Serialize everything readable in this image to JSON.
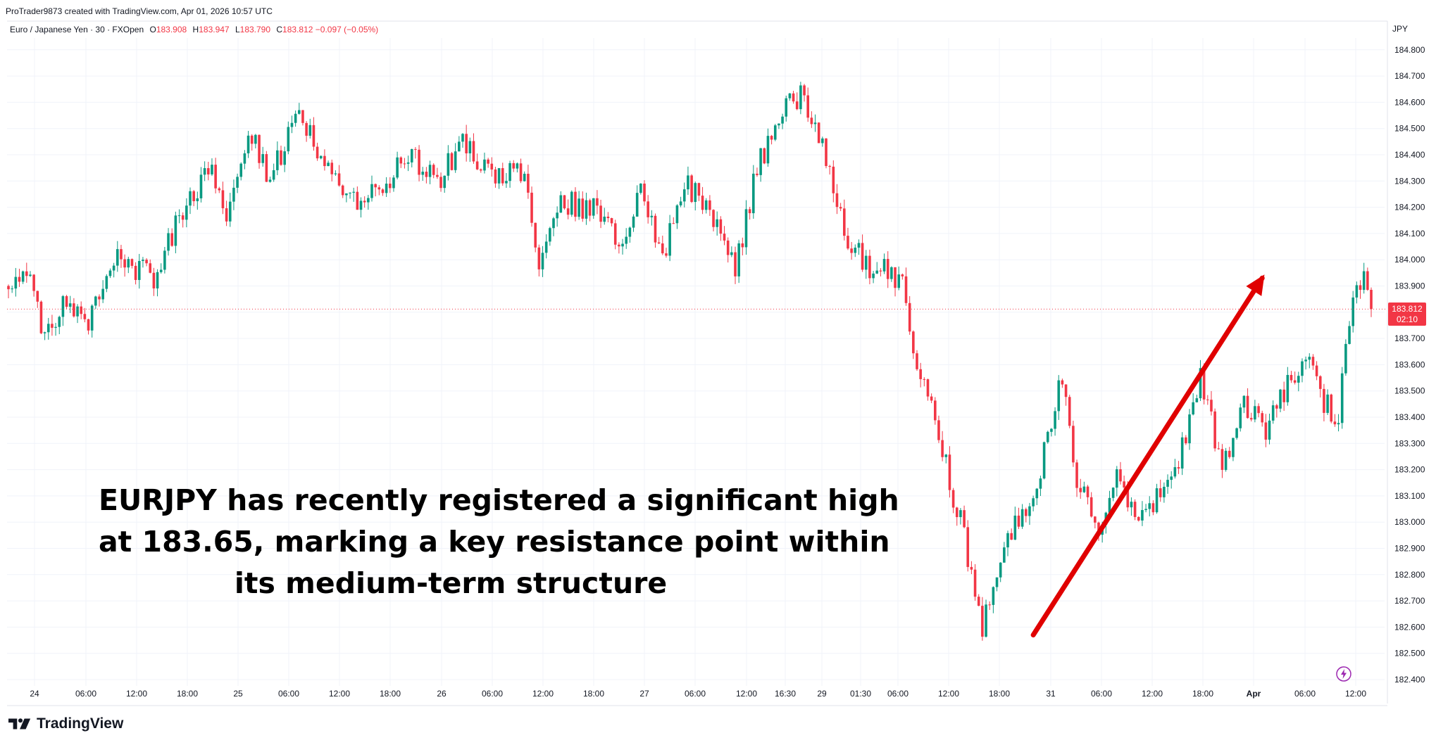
{
  "header": {
    "attribution": "ProTrader9873 created with TradingView.com, Apr 01, 2026 10:57 UTC",
    "symbol": "Euro / Japanese Yen · 30 · FXOpen",
    "ohlc": {
      "o_label": "O",
      "o_value": "183.908",
      "h_label": "H",
      "h_value": "183.947",
      "l_label": "L",
      "l_value": "183.790",
      "c_label": "C",
      "c_value": "183.812",
      "change": "−0.097 (−0.05%)"
    }
  },
  "price_axis": {
    "currency": "JPY",
    "last_price_label": "183.812",
    "countdown": "02:10"
  },
  "annotation": {
    "line1": "EURJPY has recently registered a significant high",
    "line2": "at 183.65, marking a key resistance point within",
    "line3": "its medium-term structure"
  },
  "footer": {
    "brand": "TradingView"
  },
  "icons": [
    "tradingview-logo-icon",
    "lightning-bolt-icon",
    "trend-arrow-icon"
  ],
  "colors": {
    "up": "#089981",
    "down": "#f23645",
    "arrow": "#e00000",
    "grid": "#f0f3fa",
    "text": "#131722"
  },
  "chart_data": {
    "type": "candlestick",
    "symbol": "EURJPY",
    "timeframe": "30",
    "ylim": [
      182.4,
      184.86
    ],
    "y_ticks": [
      182.4,
      182.5,
      182.6,
      182.7,
      182.8,
      182.9,
      183.0,
      183.1,
      183.2,
      183.3,
      183.4,
      183.5,
      183.6,
      183.7,
      183.8,
      183.9,
      184.0,
      184.1,
      184.2,
      184.3,
      184.4,
      184.5,
      184.6,
      184.7,
      184.8
    ],
    "y_tick_labels": [
      "182.400",
      "182.500",
      "182.600",
      "182.700",
      "182.800",
      "182.900",
      "183.000",
      "183.100",
      "183.200",
      "183.300",
      "183.400",
      "183.500",
      "183.600",
      "183.700",
      "183.800",
      "183.900",
      "184.000",
      "184.100",
      "184.200",
      "184.300",
      "184.400",
      "184.500",
      "184.600",
      "184.700",
      "184.800"
    ],
    "x_tick_labels": [
      "24",
      "06:00",
      "12:00",
      "18:00",
      "25",
      "06:00",
      "12:00",
      "18:00",
      "26",
      "06:00",
      "12:00",
      "18:00",
      "27",
      "06:00",
      "12:00",
      "16:30",
      "29",
      "01:30",
      "06:00",
      "12:00",
      "18:00",
      "31",
      "06:00",
      "12:00",
      "18:00",
      "Apr",
      "06:00",
      "12:00"
    ],
    "x_tick_bold": [
      false,
      false,
      false,
      false,
      false,
      false,
      false,
      false,
      false,
      false,
      false,
      false,
      false,
      false,
      false,
      false,
      false,
      false,
      false,
      false,
      false,
      false,
      false,
      false,
      false,
      true,
      false,
      false
    ],
    "last_price": 183.812,
    "grid": true,
    "price_path": [
      {
        "bar": 0,
        "price": 183.9
      },
      {
        "bar": 6,
        "price": 183.96
      },
      {
        "bar": 10,
        "price": 183.68
      },
      {
        "bar": 16,
        "price": 183.84
      },
      {
        "bar": 22,
        "price": 183.78
      },
      {
        "bar": 30,
        "price": 184.0
      },
      {
        "bar": 40,
        "price": 183.94
      },
      {
        "bar": 50,
        "price": 184.25
      },
      {
        "bar": 56,
        "price": 184.35
      },
      {
        "bar": 60,
        "price": 184.15
      },
      {
        "bar": 66,
        "price": 184.5
      },
      {
        "bar": 72,
        "price": 184.3
      },
      {
        "bar": 80,
        "price": 184.58
      },
      {
        "bar": 88,
        "price": 184.35
      },
      {
        "bar": 96,
        "price": 184.2
      },
      {
        "bar": 104,
        "price": 184.28
      },
      {
        "bar": 110,
        "price": 184.4
      },
      {
        "bar": 118,
        "price": 184.3
      },
      {
        "bar": 126,
        "price": 184.45
      },
      {
        "bar": 134,
        "price": 184.3
      },
      {
        "bar": 142,
        "price": 184.35
      },
      {
        "bar": 146,
        "price": 183.98
      },
      {
        "bar": 152,
        "price": 184.22
      },
      {
        "bar": 160,
        "price": 184.2
      },
      {
        "bar": 168,
        "price": 184.08
      },
      {
        "bar": 174,
        "price": 184.25
      },
      {
        "bar": 180,
        "price": 184.0
      },
      {
        "bar": 186,
        "price": 184.3
      },
      {
        "bar": 192,
        "price": 184.2
      },
      {
        "bar": 200,
        "price": 183.97
      },
      {
        "bar": 206,
        "price": 184.35
      },
      {
        "bar": 212,
        "price": 184.55
      },
      {
        "bar": 218,
        "price": 184.62
      },
      {
        "bar": 224,
        "price": 184.45
      },
      {
        "bar": 230,
        "price": 184.1
      },
      {
        "bar": 236,
        "price": 183.98
      },
      {
        "bar": 242,
        "price": 183.95
      },
      {
        "bar": 246,
        "price": 183.92
      },
      {
        "bar": 248,
        "price": 183.7
      },
      {
        "bar": 254,
        "price": 183.42
      },
      {
        "bar": 262,
        "price": 183.0
      },
      {
        "bar": 268,
        "price": 182.6
      },
      {
        "bar": 274,
        "price": 182.9
      },
      {
        "bar": 282,
        "price": 183.1
      },
      {
        "bar": 290,
        "price": 183.55
      },
      {
        "bar": 294,
        "price": 183.18
      },
      {
        "bar": 300,
        "price": 183.0
      },
      {
        "bar": 306,
        "price": 183.2
      },
      {
        "bar": 310,
        "price": 182.98
      },
      {
        "bar": 316,
        "price": 183.08
      },
      {
        "bar": 322,
        "price": 183.25
      },
      {
        "bar": 328,
        "price": 183.55
      },
      {
        "bar": 334,
        "price": 183.22
      },
      {
        "bar": 340,
        "price": 183.45
      },
      {
        "bar": 346,
        "price": 183.35
      },
      {
        "bar": 352,
        "price": 183.52
      },
      {
        "bar": 358,
        "price": 183.6
      },
      {
        "bar": 362,
        "price": 183.45
      },
      {
        "bar": 366,
        "price": 183.4
      },
      {
        "bar": 370,
        "price": 183.88
      },
      {
        "bar": 373,
        "price": 183.93
      },
      {
        "bar": 375,
        "price": 183.81
      }
    ],
    "drawings": {
      "arrow": {
        "from_bar": 282,
        "from_price": 182.57,
        "to_bar": 345,
        "to_price": 183.93
      }
    }
  }
}
